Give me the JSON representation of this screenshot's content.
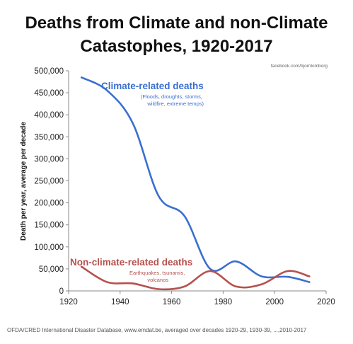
{
  "chart_data": {
    "type": "line",
    "title_lines": [
      "Deaths from Climate and non-Climate",
      "Catastophes, 1920-2017"
    ],
    "ylabel": "Death per year, average per decade",
    "xlabel": "",
    "xlim": [
      1920,
      2020
    ],
    "ylim": [
      0,
      500000
    ],
    "x_ticks": [
      1920,
      1940,
      1960,
      1980,
      2000,
      2020
    ],
    "y_ticks": [
      0,
      50000,
      100000,
      150000,
      200000,
      250000,
      300000,
      350000,
      400000,
      450000,
      500000
    ],
    "y_tick_labels": [
      "0",
      "50,000",
      "100,000",
      "150,000",
      "200,000",
      "250,000",
      "300,000",
      "350,000",
      "400,000",
      "450,000",
      "500,000"
    ],
    "grid": false,
    "legend": "none",
    "series": [
      {
        "name": "Climate-related deaths",
        "annotation_lines": [
          "(Floods, droughts, storms,",
          "wildfire, extreme temps)"
        ],
        "color": "#3a6fd0",
        "x": [
          1925,
          1935,
          1945,
          1955,
          1965,
          1975,
          1985,
          1995,
          2005,
          2013.5
        ],
        "values": [
          485000,
          455000,
          380000,
          215000,
          170000,
          50000,
          67000,
          33000,
          32000,
          20000
        ]
      },
      {
        "name": "Non-climate-related deaths",
        "annotation_lines": [
          "Earthquakes, tsunamis,",
          "volcanos"
        ],
        "color": "#b5514d",
        "x": [
          1925,
          1935,
          1945,
          1955,
          1965,
          1975,
          1985,
          1995,
          2005,
          2013.5
        ],
        "values": [
          55000,
          20000,
          17000,
          4000,
          10000,
          45000,
          10000,
          15000,
          45000,
          33000
        ]
      }
    ],
    "credit": "facebook.com/bjornlomborg",
    "source": "OFDA/CRED International Disaster Database, www.emdat.be, averaged over decades 1920-29, 1930-39, ...,2010-2017"
  }
}
